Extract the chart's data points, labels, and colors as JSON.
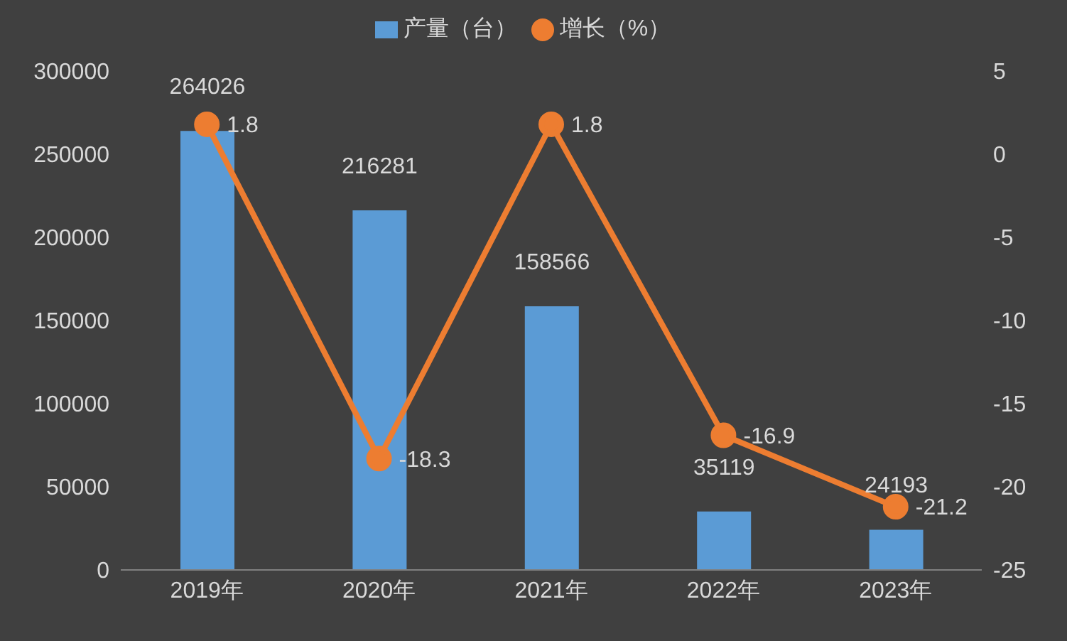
{
  "chart_data": {
    "type": "bar",
    "categories": [
      "2019年",
      "2020年",
      "2021年",
      "2022年",
      "2023年"
    ],
    "series": [
      {
        "name": "产量（台）",
        "color": "#5b9bd5",
        "values": [
          264026,
          216281,
          158566,
          35119,
          24193
        ]
      },
      {
        "name": "增长（%）",
        "type": "line",
        "axis": "y2",
        "color": "#ed7d31",
        "values": [
          1.8,
          -18.3,
          1.8,
          -16.9,
          -21.2
        ]
      }
    ],
    "ylim": [
      0,
      300000
    ],
    "yticks": [
      0,
      50000,
      100000,
      150000,
      200000,
      250000,
      300000
    ],
    "y2lim": [
      -25,
      5
    ],
    "y2ticks": [
      -25,
      -20,
      -15,
      -10,
      -5,
      0,
      5
    ],
    "data_labels": true,
    "legend": "top",
    "marker": "circle",
    "grid": false
  }
}
